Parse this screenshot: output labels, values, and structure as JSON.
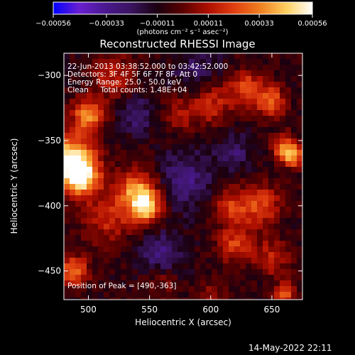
{
  "chart_data": {
    "type": "heatmap",
    "title": "Reconstructed RHESSI Image",
    "xlabel": "Heliocentric X (arcsec)",
    "ylabel": "Heliocentric Y (arcsec)",
    "xlim": [
      480,
      675
    ],
    "ylim": [
      -472,
      -283
    ],
    "x_ticks": [
      500,
      550,
      600,
      650
    ],
    "y_ticks": [
      -300,
      -350,
      -400,
      -450
    ],
    "x_tick_labels": [
      "500",
      "550",
      "600",
      "650"
    ],
    "y_tick_labels": [
      "−300",
      "−350",
      "−400",
      "−450"
    ],
    "colorbar": {
      "min": -0.00056,
      "max": 0.00056,
      "ticks": [
        -0.00056,
        -0.00033,
        -0.00011,
        0.00011,
        0.00033,
        0.00056
      ],
      "tick_labels": [
        "−0.00056",
        "−0.00033",
        "−0.00011",
        "0.00011",
        "0.00033",
        "0.00056"
      ],
      "units": "(photons cm⁻² s⁻¹ asec⁻²)",
      "colors": [
        "#0000ff",
        "#6a1fd0",
        "#4a1890",
        "#3a1460",
        "#1a0010",
        "#5a0000",
        "#b01000",
        "#e04010",
        "#f08020",
        "#ffd060",
        "#ffffff"
      ]
    },
    "annotations": [
      "22-Jun-2013 03:38:52.000 to 03:42:52.000",
      "Detectors: 3F 4F 5F 6F 7F 8F, Att 0",
      "Energy Range: 25.0 - 50.0 keV",
      "Clean     Total counts: 1.48E+04"
    ],
    "peak_label": "Position of Peak = [490,-363]",
    "peak": [
      490,
      -363
    ],
    "hotspots": [
      {
        "x": 485,
        "y": -365,
        "amp": 0.00056,
        "r": 14
      },
      {
        "x": 495,
        "y": -378,
        "amp": 0.00048,
        "r": 10
      },
      {
        "x": 500,
        "y": -330,
        "amp": 0.00042,
        "r": 9
      },
      {
        "x": 540,
        "y": -390,
        "amp": 0.00046,
        "r": 12
      },
      {
        "x": 548,
        "y": -402,
        "amp": 0.0004,
        "r": 8
      },
      {
        "x": 520,
        "y": -300,
        "amp": 0.00022,
        "r": 12
      },
      {
        "x": 515,
        "y": -410,
        "amp": 0.00022,
        "r": 14
      },
      {
        "x": 575,
        "y": -330,
        "amp": 0.00018,
        "r": 10
      },
      {
        "x": 600,
        "y": -320,
        "amp": 0.00026,
        "r": 12
      },
      {
        "x": 630,
        "y": -310,
        "amp": 0.0003,
        "r": 10
      },
      {
        "x": 650,
        "y": -320,
        "amp": 0.00034,
        "r": 8
      },
      {
        "x": 660,
        "y": -355,
        "amp": 0.00036,
        "r": 7
      },
      {
        "x": 668,
        "y": -362,
        "amp": 0.0004,
        "r": 6
      },
      {
        "x": 640,
        "y": -400,
        "amp": 0.0003,
        "r": 12
      },
      {
        "x": 615,
        "y": -400,
        "amp": 0.00024,
        "r": 10
      },
      {
        "x": 620,
        "y": -430,
        "amp": 0.00028,
        "r": 10
      },
      {
        "x": 650,
        "y": -440,
        "amp": 0.00022,
        "r": 10
      },
      {
        "x": 660,
        "y": -468,
        "amp": 0.00034,
        "r": 6
      },
      {
        "x": 488,
        "y": -450,
        "amp": 0.0004,
        "r": 8
      },
      {
        "x": 560,
        "y": -455,
        "amp": 0.00018,
        "r": 10
      },
      {
        "x": 600,
        "y": -470,
        "amp": 0.00016,
        "r": 8
      },
      {
        "x": 580,
        "y": -380,
        "amp": -0.0002,
        "r": 16
      },
      {
        "x": 560,
        "y": -440,
        "amp": -0.00025,
        "r": 12
      },
      {
        "x": 590,
        "y": -300,
        "amp": -0.00015,
        "r": 14
      },
      {
        "x": 540,
        "y": -330,
        "amp": -0.00018,
        "r": 10
      },
      {
        "x": 620,
        "y": -360,
        "amp": -0.00016,
        "r": 10
      }
    ]
  },
  "footer": {
    "timestamp": "14-May-2022 22:11"
  }
}
